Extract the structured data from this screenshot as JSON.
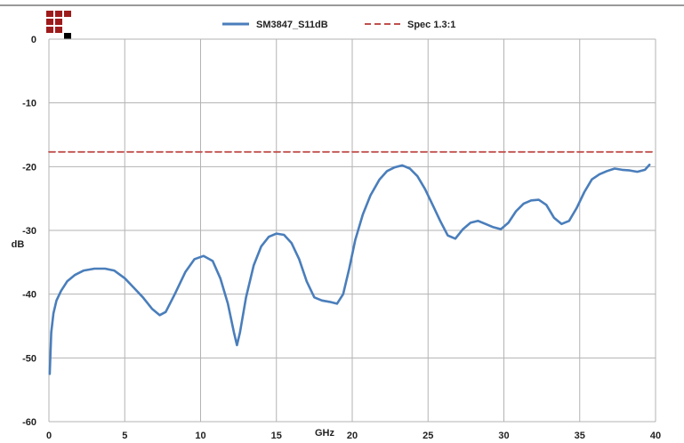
{
  "colors": {
    "series": "#4a7ebb",
    "spec": "#c0504d",
    "grid": "#b3b3b3",
    "logo_red": "#9e1b1b",
    "logo_black": "#000000"
  },
  "logo": {
    "icon": "company-logo-squares-icon"
  },
  "chart_data": {
    "type": "line",
    "title": "",
    "xlabel": "GHz",
    "ylabel": "dB",
    "xlim": [
      0,
      40
    ],
    "ylim": [
      -60,
      0
    ],
    "x_ticks": [
      0,
      5,
      10,
      15,
      20,
      25,
      30,
      35,
      40
    ],
    "y_ticks": [
      0,
      -10,
      -20,
      -30,
      -40,
      -50,
      -60
    ],
    "x_tick_labels": [
      "0",
      "5",
      "10",
      "15",
      "20",
      "25",
      "30",
      "35",
      "40"
    ],
    "y_tick_labels": [
      "0",
      "-10",
      "-20",
      "-30",
      "-40",
      "-50",
      "-60"
    ],
    "grid": true,
    "legend_position": "top-center",
    "series": [
      {
        "name": "SM3847_S11dB",
        "style": "solid",
        "x": [
          0.05,
          0.15,
          0.3,
          0.5,
          0.8,
          1.2,
          1.7,
          2.3,
          3.0,
          3.7,
          4.3,
          5.0,
          5.6,
          6.2,
          6.8,
          7.3,
          7.7,
          8.3,
          9.0,
          9.6,
          10.2,
          10.8,
          11.3,
          11.8,
          12.2,
          12.4,
          12.6,
          13.0,
          13.5,
          14.0,
          14.5,
          15.0,
          15.5,
          16.0,
          16.5,
          17.0,
          17.5,
          18.0,
          18.5,
          19.0,
          19.4,
          19.8,
          20.2,
          20.7,
          21.2,
          21.8,
          22.3,
          22.8,
          23.3,
          23.8,
          24.3,
          24.8,
          25.3,
          25.8,
          26.3,
          26.8,
          27.3,
          27.8,
          28.3,
          28.8,
          29.3,
          29.8,
          30.3,
          30.8,
          31.3,
          31.8,
          32.3,
          32.8,
          33.3,
          33.8,
          34.3,
          34.8,
          35.3,
          35.8,
          36.3,
          36.8,
          37.3,
          37.8,
          38.3,
          38.8,
          39.3,
          39.6
        ],
        "values": [
          -52.5,
          -46,
          -43,
          -41,
          -39.5,
          -38,
          -37,
          -36.3,
          -36,
          -36,
          -36.3,
          -37.5,
          -39,
          -40.5,
          -42.3,
          -43.3,
          -42.8,
          -40,
          -36.5,
          -34.5,
          -34,
          -34.8,
          -37.5,
          -41.5,
          -46,
          -48,
          -46,
          -40.5,
          -35.5,
          -32.5,
          -31,
          -30.5,
          -30.7,
          -32,
          -34.5,
          -38,
          -40.5,
          -41,
          -41.2,
          -41.5,
          -40,
          -36,
          -31.5,
          -27.5,
          -24.5,
          -22,
          -20.7,
          -20.1,
          -19.8,
          -20.3,
          -21.5,
          -23.5,
          -26,
          -28.5,
          -30.8,
          -31.3,
          -29.8,
          -28.8,
          -28.5,
          -29,
          -29.5,
          -29.8,
          -28.8,
          -27,
          -25.8,
          -25.3,
          -25.2,
          -26,
          -28,
          -29,
          -28.5,
          -26.5,
          -24,
          -22,
          -21.2,
          -20.7,
          -20.3,
          -20.5,
          -20.6,
          -20.8,
          -20.5,
          -19.7
        ]
      },
      {
        "name": "Spec 1.3:1",
        "style": "dashed",
        "x": [
          0,
          40
        ],
        "values": [
          -17.7,
          -17.7
        ]
      }
    ]
  }
}
